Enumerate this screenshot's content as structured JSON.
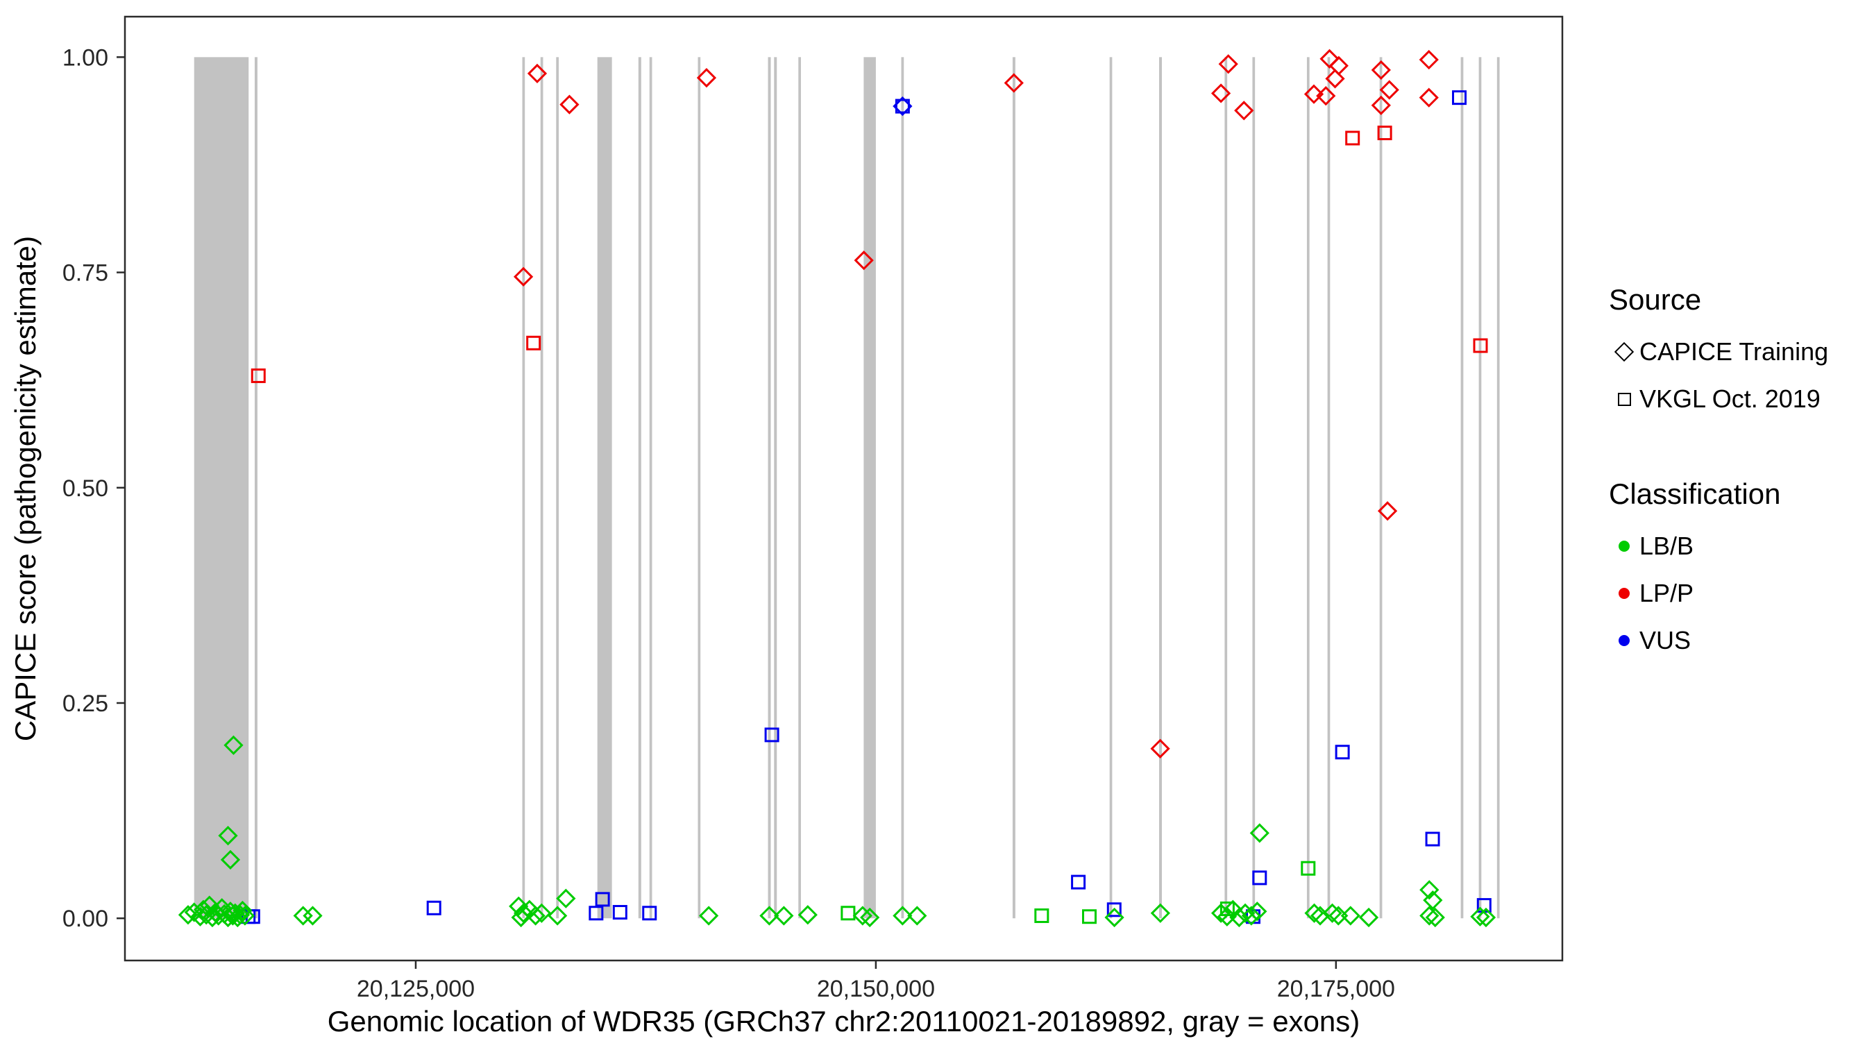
{
  "figure": {
    "y_axis": {
      "title": "CAPICE score (pathogenicity estimate)",
      "ticks": [
        {
          "value": 0,
          "label": "0.00"
        },
        {
          "value": 0.25,
          "label": "0.25"
        },
        {
          "value": 0.5,
          "label": "0.50"
        },
        {
          "value": 0.75,
          "label": "0.75"
        },
        {
          "value": 1,
          "label": "1.00"
        }
      ]
    },
    "x_axis": {
      "title": "Genomic location of WDR35 (GRCh37 chr2:20110021-20189892, gray = exons)",
      "ticks": [
        {
          "value": 20125000,
          "label": "20,125,000"
        },
        {
          "value": 20150000,
          "label": "20,150,000"
        },
        {
          "value": 20175000,
          "label": "20,175,000"
        }
      ]
    },
    "legend": {
      "source": {
        "title": "Source",
        "items": [
          {
            "shape": "diamond",
            "label": "CAPICE Training"
          },
          {
            "shape": "square",
            "label": "VKGL Oct. 2019"
          }
        ]
      },
      "classification": {
        "title": "Classification",
        "items": [
          {
            "color": "#00CC00",
            "label": "LB/B"
          },
          {
            "color": "#EE0000",
            "label": "LP/P"
          },
          {
            "color": "#0000EE",
            "label": "VUS"
          }
        ]
      }
    }
  },
  "chart_data": {
    "type": "scatter",
    "title": "",
    "xlabel": "Genomic location of WDR35 (GRCh37 chr2:20110021-20189892, gray = exons)",
    "ylabel": "CAPICE score (pathogenicity estimate)",
    "xlim": [
      20109200,
      20187300
    ],
    "ylim": [
      -0.049,
      1.047
    ],
    "grid": false,
    "legend_position": "right",
    "exon_color": "#C2C2C2",
    "exons": [
      [
        20112960,
        20115920
      ],
      [
        20116250,
        20116400
      ],
      [
        20130790,
        20130930
      ],
      [
        20131780,
        20131920
      ],
      [
        20132630,
        20132770
      ],
      [
        20134870,
        20135660
      ],
      [
        20137100,
        20137250
      ],
      [
        20137700,
        20137840
      ],
      [
        20140330,
        20140470
      ],
      [
        20144140,
        20144290
      ],
      [
        20144470,
        20144620
      ],
      [
        20145790,
        20145930
      ],
      [
        20149340,
        20150000
      ],
      [
        20151380,
        20151520
      ],
      [
        20157430,
        20157580
      ],
      [
        20162700,
        20162840
      ],
      [
        20165390,
        20165540
      ],
      [
        20168950,
        20169090
      ],
      [
        20170460,
        20170600
      ],
      [
        20173420,
        20173560
      ],
      [
        20174540,
        20174680
      ],
      [
        20177370,
        20177510
      ],
      [
        20181780,
        20181920
      ],
      [
        20182760,
        20182900
      ],
      [
        20183750,
        20183890
      ]
    ],
    "series": [
      {
        "name": "LP/P - CAPICE Training",
        "classification": "LP/P",
        "source": "CAPICE Training",
        "shape": "diamond",
        "color": "#EE0000",
        "points": [
          [
            20131600,
            0.981
          ],
          [
            20133350,
            0.945
          ],
          [
            20140800,
            0.976
          ],
          [
            20130850,
            0.745
          ],
          [
            20149350,
            0.764
          ],
          [
            20157500,
            0.97
          ],
          [
            20169150,
            0.992
          ],
          [
            20168750,
            0.958
          ],
          [
            20170000,
            0.938
          ],
          [
            20173800,
            0.957
          ],
          [
            20174650,
            0.998
          ],
          [
            20175150,
            0.99
          ],
          [
            20174950,
            0.975
          ],
          [
            20174450,
            0.955
          ],
          [
            20177450,
            0.985
          ],
          [
            20177900,
            0.962
          ],
          [
            20177450,
            0.944
          ],
          [
            20180050,
            0.997
          ],
          [
            20180050,
            0.953
          ],
          [
            20177800,
            0.473
          ],
          [
            20165450,
            0.197
          ]
        ]
      },
      {
        "name": "LP/P - VKGL Oct. 2019",
        "classification": "LP/P",
        "source": "VKGL Oct. 2019",
        "shape": "square",
        "color": "#EE0000",
        "points": [
          [
            20116450,
            0.63
          ],
          [
            20131400,
            0.668
          ],
          [
            20175900,
            0.906
          ],
          [
            20177650,
            0.912
          ],
          [
            20182850,
            0.665
          ]
        ]
      },
      {
        "name": "VUS - CAPICE Training",
        "classification": "VUS",
        "source": "CAPICE Training",
        "shape": "diamond",
        "color": "#0000EE",
        "points": [
          [
            20151450,
            0.943
          ]
        ]
      },
      {
        "name": "VUS - VKGL Oct. 2019",
        "classification": "VUS",
        "source": "VKGL Oct. 2019",
        "shape": "square",
        "color": "#0000EE",
        "points": [
          [
            20151450,
            0.943
          ],
          [
            20125990,
            0.012
          ],
          [
            20144350,
            0.213
          ],
          [
            20175350,
            0.193
          ],
          [
            20161000,
            0.042
          ],
          [
            20170850,
            0.047
          ],
          [
            20180250,
            0.092
          ],
          [
            20181700,
            0.953
          ],
          [
            20135150,
            0.022
          ],
          [
            20134800,
            0.006
          ],
          [
            20136100,
            0.007
          ],
          [
            20137700,
            0.006
          ],
          [
            20115900,
            0.002
          ],
          [
            20116150,
            0.002
          ],
          [
            20162950,
            0.01
          ],
          [
            20170500,
            0.002
          ],
          [
            20183050,
            0.015
          ]
        ]
      },
      {
        "name": "LB/B - CAPICE Training",
        "classification": "LB/B",
        "source": "CAPICE Training",
        "shape": "diamond",
        "color": "#00CC00",
        "points": [
          [
            20112630,
            0.004
          ],
          [
            20112960,
            0.007
          ],
          [
            20113290,
            0.002
          ],
          [
            20113460,
            0.01
          ],
          [
            20113620,
            0.004
          ],
          [
            20113790,
            0.015
          ],
          [
            20113950,
            0.001
          ],
          [
            20114120,
            0.007
          ],
          [
            20114280,
            0.003
          ],
          [
            20114470,
            0.012
          ],
          [
            20114600,
            0.005
          ],
          [
            20114800,
            0.001
          ],
          [
            20114930,
            0.008
          ],
          [
            20115060,
            0.003
          ],
          [
            20115190,
            0.006
          ],
          [
            20115320,
            0.001
          ],
          [
            20115460,
            0.004
          ],
          [
            20115590,
            0.009
          ],
          [
            20115720,
            0.003
          ],
          [
            20115100,
            0.201
          ],
          [
            20114800,
            0.096
          ],
          [
            20114930,
            0.068
          ],
          [
            20118880,
            0.003
          ],
          [
            20119400,
            0.003
          ],
          [
            20130590,
            0.014
          ],
          [
            20130720,
            0.001
          ],
          [
            20130850,
            0.006
          ],
          [
            20131180,
            0.01
          ],
          [
            20131510,
            0.003
          ],
          [
            20131840,
            0.006
          ],
          [
            20132700,
            0.003
          ],
          [
            20133160,
            0.023
          ],
          [
            20140920,
            0.003
          ],
          [
            20144210,
            0.003
          ],
          [
            20145000,
            0.003
          ],
          [
            20146300,
            0.004
          ],
          [
            20149280,
            0.003
          ],
          [
            20149670,
            0.001
          ],
          [
            20151450,
            0.003
          ],
          [
            20152240,
            0.003
          ],
          [
            20162960,
            0.001
          ],
          [
            20165460,
            0.006
          ],
          [
            20168750,
            0.006
          ],
          [
            20169080,
            0.002
          ],
          [
            20169400,
            0.01
          ],
          [
            20169740,
            0.001
          ],
          [
            20170070,
            0.006
          ],
          [
            20170400,
            0.003
          ],
          [
            20170720,
            0.008
          ],
          [
            20170850,
            0.099
          ],
          [
            20173820,
            0.006
          ],
          [
            20174140,
            0.003
          ],
          [
            20174800,
            0.006
          ],
          [
            20175130,
            0.003
          ],
          [
            20175790,
            0.003
          ],
          [
            20176780,
            0.001
          ],
          [
            20180070,
            0.033
          ],
          [
            20180260,
            0.021
          ],
          [
            20180070,
            0.003
          ],
          [
            20180390,
            0.001
          ],
          [
            20182830,
            0.002
          ],
          [
            20183150,
            0.001
          ]
        ]
      },
      {
        "name": "LB/B - VKGL Oct. 2019",
        "classification": "LB/B",
        "source": "VKGL Oct. 2019",
        "shape": "square",
        "color": "#00CC00",
        "points": [
          [
            20148490,
            0.006
          ],
          [
            20159010,
            0.003
          ],
          [
            20173490,
            0.058
          ],
          [
            20169100,
            0.011
          ],
          [
            20161600,
            0.002
          ]
        ]
      }
    ]
  }
}
